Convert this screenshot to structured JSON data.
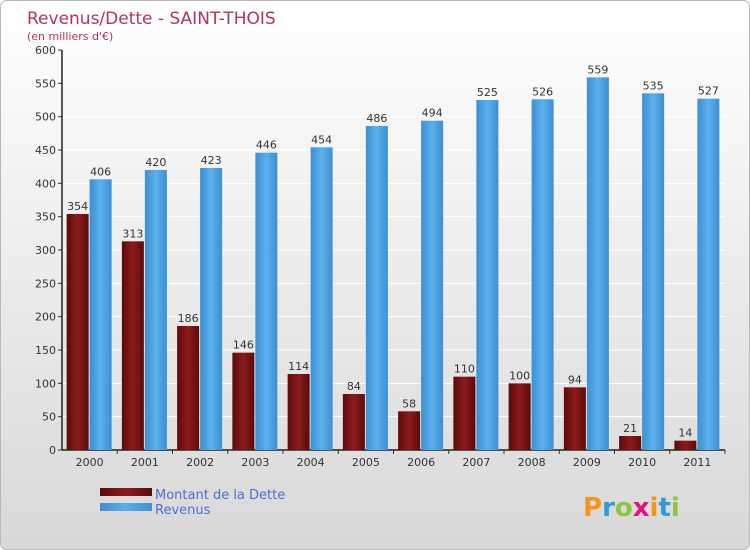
{
  "chart_data": {
    "type": "bar",
    "title": "Revenus/Dette - SAINT-THOIS",
    "subtitle": "(en milliers d'€)",
    "categories": [
      "2000",
      "2001",
      "2002",
      "2003",
      "2004",
      "2005",
      "2006",
      "2007",
      "2008",
      "2009",
      "2010",
      "2011"
    ],
    "series": [
      {
        "name": "Montant de la Dette",
        "color": "#7a1212",
        "values": [
          354,
          313,
          186,
          146,
          114,
          84,
          58,
          110,
          100,
          94,
          21,
          14
        ]
      },
      {
        "name": "Revenus",
        "color": "#4a9fe0",
        "values": [
          406,
          420,
          423,
          446,
          454,
          486,
          494,
          525,
          526,
          559,
          535,
          527
        ]
      }
    ],
    "ylim": [
      0,
      600
    ],
    "yticks": [
      0,
      50,
      100,
      150,
      200,
      250,
      300,
      350,
      400,
      450,
      500,
      550,
      600
    ],
    "grid": true,
    "xlabel": "",
    "ylabel": "",
    "legend_position": "bottom-left"
  },
  "brand": {
    "letters": [
      "P",
      "r",
      "o",
      "x",
      "i",
      "t",
      "i"
    ],
    "colors": [
      "#f7941d",
      "#2e9ad6",
      "#8cc63f",
      "#e5127d",
      "#f7941d",
      "#2e9ad6",
      "#8cc63f"
    ]
  },
  "colors": {
    "background_top": "#ffffff",
    "background_bottom": "#d6d6d6",
    "grid": "#ffffff"
  }
}
